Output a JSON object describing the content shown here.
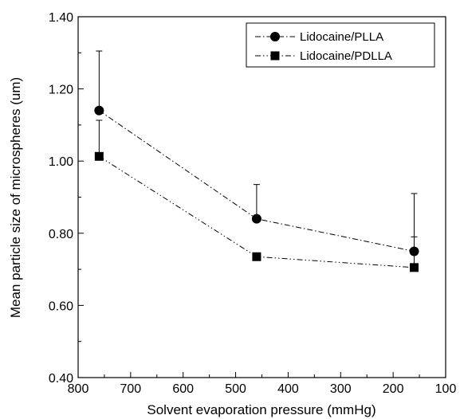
{
  "chart_data": {
    "type": "line",
    "xlabel": "Solvent evaporation pressure (mmHg)",
    "ylabel": "Mean particle size of microspheres    (um)",
    "xlim": [
      800,
      100
    ],
    "ylim": [
      0.4,
      1.4
    ],
    "x_ticks": [
      "800",
      "700",
      "600",
      "500",
      "400",
      "300",
      "200",
      "100"
    ],
    "y_ticks": [
      "0.40",
      "0.60",
      "0.80",
      "1.00",
      "1.20",
      "1.40"
    ],
    "grid": false,
    "legend_position": "top-right",
    "series": [
      {
        "name": "Lidocaine/PLLA",
        "marker": "circle",
        "color": "#000000",
        "x": [
          760,
          460,
          160
        ],
        "y": [
          1.14,
          0.84,
          0.75
        ],
        "err_plus": [
          0.165,
          0.095,
          0.16
        ]
      },
      {
        "name": "Lidocaine/PDLLA",
        "marker": "square",
        "color": "#000000",
        "x": [
          760,
          460,
          160
        ],
        "y": [
          1.013,
          0.735,
          0.705
        ],
        "err_plus": [
          0.1,
          0.0,
          0.085
        ]
      }
    ]
  }
}
